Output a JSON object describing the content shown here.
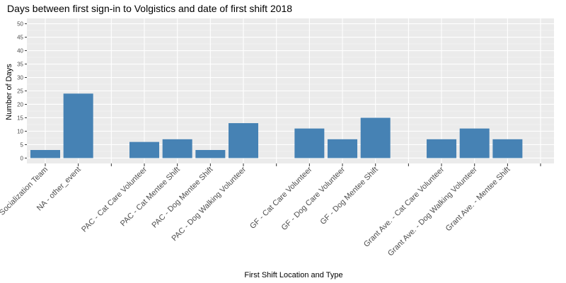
{
  "chart_data": {
    "type": "bar",
    "title": "Days between first sign-in to Volgistics and date of first shift 2018",
    "xlabel": "First Shift Location and Type",
    "ylabel": "Number of Days",
    "ylim": [
      -2,
      52
    ],
    "yticks": [
      0,
      5,
      10,
      15,
      20,
      25,
      30,
      35,
      40,
      45,
      50
    ],
    "grid": true,
    "legend": "none",
    "bar_color": "#4682b4",
    "panel_color": "#ebebeb",
    "categories": [
      "Socialization Team",
      "NA - other_event",
      "",
      "PAC - Cat Care Volunteer",
      "PAC - Cat Mentee Shift",
      "PAC - Dog Mentee Shift",
      "PAC - Dog Walking Volunteer",
      "",
      "GF - Cat Care Volunteer",
      "GF - Dog Care Volunteer",
      "GF - Dog Mentee Shift",
      "",
      "Grant Ave. - Cat Care Volunteer",
      "Grant Ave. - Dog Walking Volunteer",
      "Grant Ave. - Mentee Shift",
      ""
    ],
    "values": [
      3,
      24,
      null,
      6,
      7,
      3,
      13,
      null,
      11,
      7,
      15,
      null,
      7,
      11,
      7,
      null
    ]
  }
}
